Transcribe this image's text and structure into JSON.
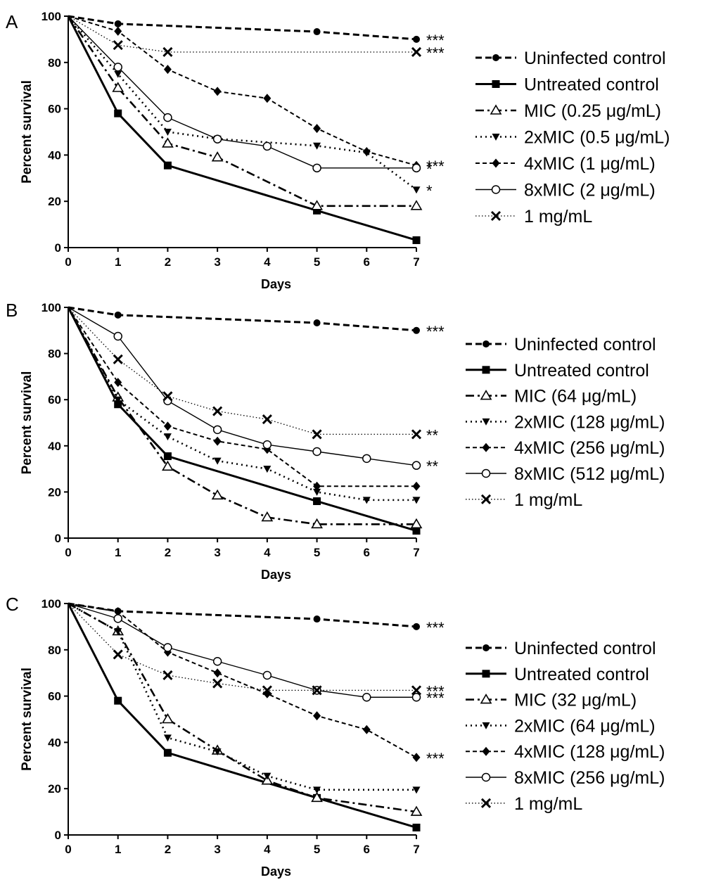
{
  "chart_data": [
    {
      "type": "line",
      "panel_label": "A",
      "xlabel": "Days",
      "ylabel": "Percent survival",
      "xlim": [
        0,
        7
      ],
      "ylim": [
        0,
        100
      ],
      "xticks": [
        "0",
        "1",
        "2",
        "3",
        "4",
        "5",
        "6",
        "7"
      ],
      "yticks": [
        "0",
        "20",
        "40",
        "60",
        "80",
        "100"
      ],
      "legend_position": "right",
      "series": [
        {
          "name": "Uninfected control",
          "style": "dashed-bold",
          "marker": "filled-circle",
          "x": [
            0,
            1,
            5,
            7
          ],
          "y": [
            100,
            96.7,
            93.3,
            90
          ],
          "annotation": "***"
        },
        {
          "name": "Untreated control",
          "style": "solid-bold",
          "marker": "filled-square",
          "x": [
            0,
            1,
            2,
            5,
            7
          ],
          "y": [
            100,
            58,
            35.5,
            16,
            3.2
          ],
          "annotation": ""
        },
        {
          "name": "MIC (0.25 μg/mL)",
          "style": "dashdot",
          "marker": "open-triangle",
          "x": [
            0,
            1,
            2,
            3,
            5,
            7
          ],
          "y": [
            100,
            69,
            45,
            39,
            18,
            18
          ],
          "annotation": ""
        },
        {
          "name": "2xMIC (0.5 μg/mL)",
          "style": "dotted",
          "marker": "filled-triangle-down",
          "x": [
            0,
            1,
            2,
            3,
            5,
            6,
            7
          ],
          "y": [
            100,
            75,
            50,
            47,
            44,
            41,
            25
          ],
          "annotation": "*"
        },
        {
          "name": "4xMIC (1 μg/mL)",
          "style": "dashed",
          "marker": "filled-diamond",
          "x": [
            0,
            1,
            2,
            3,
            4,
            5,
            6,
            7
          ],
          "y": [
            100,
            93.5,
            77,
            67.5,
            64.5,
            51.5,
            41.5,
            35.5
          ],
          "annotation": "***"
        },
        {
          "name": "8xMIC (2 μg/mL)",
          "style": "solid-thin",
          "marker": "open-circle",
          "x": [
            0,
            1,
            2,
            3,
            4,
            5,
            7
          ],
          "y": [
            100,
            78,
            56.2,
            46.9,
            43.8,
            34.4,
            34.4
          ],
          "annotation": "*"
        },
        {
          "name": "1 mg/mL",
          "style": "fine-dotted",
          "marker": "x",
          "x": [
            0,
            1,
            2,
            7
          ],
          "y": [
            100,
            87.5,
            84.5,
            84.5
          ],
          "annotation": "***"
        }
      ]
    },
    {
      "type": "line",
      "panel_label": "B",
      "xlabel": "Days",
      "ylabel": "Percent survival",
      "xlim": [
        0,
        7
      ],
      "ylim": [
        0,
        100
      ],
      "xticks": [
        "0",
        "1",
        "2",
        "3",
        "4",
        "5",
        "6",
        "7"
      ],
      "yticks": [
        "0",
        "20",
        "40",
        "60",
        "80",
        "100"
      ],
      "legend_position": "right",
      "series": [
        {
          "name": "Uninfected control",
          "style": "dashed-bold",
          "marker": "filled-circle",
          "x": [
            0,
            1,
            5,
            7
          ],
          "y": [
            100,
            96.7,
            93.3,
            90
          ],
          "annotation": "***"
        },
        {
          "name": "Untreated control",
          "style": "solid-bold",
          "marker": "filled-square",
          "x": [
            0,
            1,
            2,
            5,
            7
          ],
          "y": [
            100,
            58,
            35.5,
            16,
            3.2
          ],
          "annotation": ""
        },
        {
          "name": "MIC (64 μg/mL)",
          "style": "dashdot",
          "marker": "open-triangle",
          "x": [
            0,
            1,
            2,
            3,
            4,
            5,
            7
          ],
          "y": [
            100,
            61,
            31,
            18.5,
            9,
            6,
            6
          ],
          "annotation": ""
        },
        {
          "name": "2xMIC (128 μg/mL)",
          "style": "dotted",
          "marker": "filled-triangle-down",
          "x": [
            0,
            1,
            2,
            3,
            4,
            5,
            6,
            7
          ],
          "y": [
            100,
            60,
            44,
            33.5,
            30,
            20,
            16.5,
            16.5
          ],
          "annotation": ""
        },
        {
          "name": "4xMIC (256 μg/mL)",
          "style": "dashed",
          "marker": "filled-diamond",
          "x": [
            0,
            1,
            2,
            3,
            4,
            5,
            7
          ],
          "y": [
            100,
            67.5,
            48.5,
            42,
            38.5,
            22.5,
            22.5
          ],
          "annotation": ""
        },
        {
          "name": "8xMIC (512 μg/mL)",
          "style": "solid-thin",
          "marker": "open-circle",
          "x": [
            0,
            1,
            2,
            3,
            4,
            5,
            6,
            7
          ],
          "y": [
            100,
            87.5,
            59.5,
            47,
            40.5,
            37.5,
            34.5,
            31.5
          ],
          "annotation": "**"
        },
        {
          "name": "1 mg/mL",
          "style": "fine-dotted",
          "marker": "x",
          "x": [
            0,
            1,
            2,
            3,
            4,
            5,
            7
          ],
          "y": [
            100,
            77.5,
            61.5,
            55,
            51.5,
            45,
            45
          ],
          "annotation": "**"
        }
      ]
    },
    {
      "type": "line",
      "panel_label": "C",
      "xlabel": "Days",
      "ylabel": "Percent survival",
      "xlim": [
        0,
        7
      ],
      "ylim": [
        0,
        100
      ],
      "xticks": [
        "0",
        "1",
        "2",
        "3",
        "4",
        "5",
        "6",
        "7"
      ],
      "yticks": [
        "0",
        "20",
        "40",
        "60",
        "80",
        "100"
      ],
      "legend_position": "right",
      "series": [
        {
          "name": "Uninfected control",
          "style": "dashed-bold",
          "marker": "filled-circle",
          "x": [
            0,
            1,
            5,
            7
          ],
          "y": [
            100,
            96.7,
            93.3,
            90
          ],
          "annotation": "***"
        },
        {
          "name": "Untreated control",
          "style": "solid-bold",
          "marker": "filled-square",
          "x": [
            0,
            1,
            2,
            5,
            7
          ],
          "y": [
            100,
            58,
            35.5,
            16,
            3.2
          ],
          "annotation": ""
        },
        {
          "name": "MIC (32 μg/mL)",
          "style": "dashdot",
          "marker": "open-triangle",
          "x": [
            0,
            1,
            2,
            3,
            4,
            5,
            7
          ],
          "y": [
            100,
            88,
            50,
            36.5,
            23.5,
            16,
            10
          ],
          "annotation": ""
        },
        {
          "name": "2xMIC (64 μg/mL)",
          "style": "dotted",
          "marker": "filled-triangle-down",
          "x": [
            0,
            1,
            2,
            3,
            4,
            5,
            7
          ],
          "y": [
            100,
            88,
            42,
            36,
            25.5,
            19.5,
            19.5
          ],
          "annotation": ""
        },
        {
          "name": "4xMIC (128 μg/mL)",
          "style": "dashed",
          "marker": "filled-diamond",
          "x": [
            0,
            1,
            2,
            3,
            4,
            5,
            6,
            7
          ],
          "y": [
            100,
            96.5,
            79,
            70,
            61,
            51.5,
            45.5,
            33.5
          ],
          "annotation": "***"
        },
        {
          "name": "8xMIC (256 μg/mL)",
          "style": "solid-thin",
          "marker": "open-circle",
          "x": [
            0,
            1,
            2,
            3,
            4,
            5,
            6,
            7
          ],
          "y": [
            100,
            93.5,
            81,
            75,
            69,
            62.5,
            59.5,
            59.5
          ],
          "annotation": "***"
        },
        {
          "name": "1 mg/mL",
          "style": "fine-dotted",
          "marker": "x",
          "x": [
            0,
            1,
            2,
            3,
            4,
            5,
            7
          ],
          "y": [
            100,
            78,
            69,
            65.5,
            62.5,
            62.5,
            62.5
          ],
          "annotation": "***"
        }
      ]
    }
  ]
}
